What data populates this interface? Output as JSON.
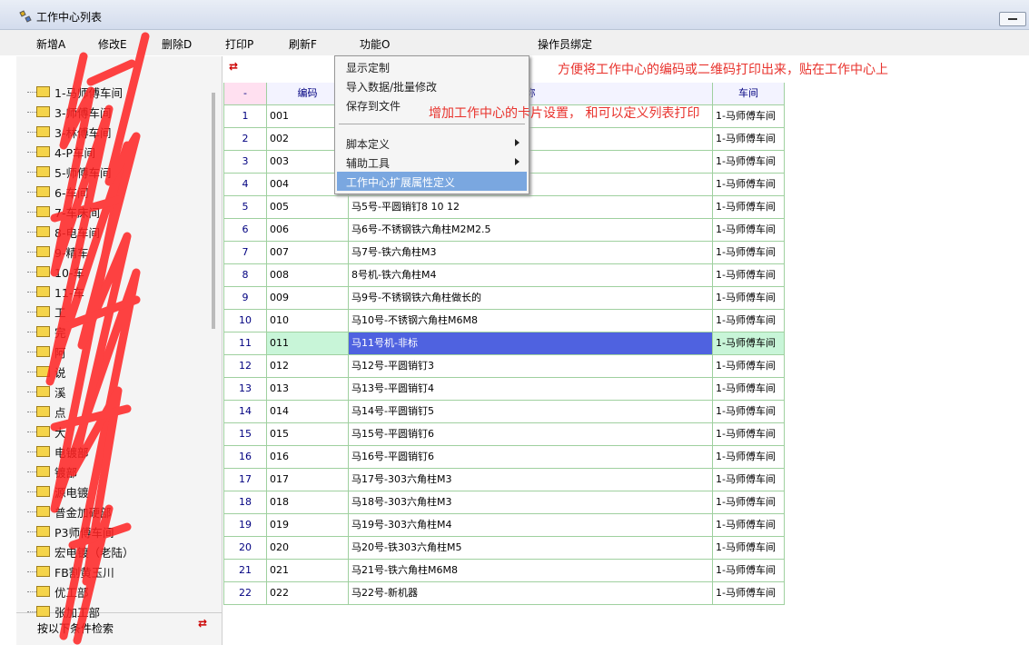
{
  "window": {
    "title": "工作中心列表"
  },
  "toolbar": [
    "新增A",
    "修改E",
    "删除D",
    "打印P",
    "刷新F",
    "功能O",
    "操作员绑定"
  ],
  "tree": [
    "1-马师傅车间",
    "3-师傅车间",
    "3-林傅车间",
    "4-P车间",
    "5-师傅车间",
    "6-车间",
    "7-车床间",
    "8-电车间",
    "9-精车",
    "10-车",
    "11-车",
    "工",
    "完",
    "阿",
    "说",
    "溪",
    "点",
    "大",
    "电镀部",
    "镀部",
    "源电镀",
    "普金加硬部",
    "P3师傅车间",
    "宏电镀（老陆）",
    "FB割黄玉川",
    "优工部",
    "张加工部"
  ],
  "search_label": "按以下条件检索",
  "table": {
    "headers": [
      "-",
      "编码",
      "称",
      "车间"
    ],
    "rows": [
      [
        "1",
        "001",
        null,
        "1-马师傅车间"
      ],
      [
        "2",
        "002",
        null,
        "1-马师傅车间"
      ],
      [
        "3",
        "003",
        null,
        "1-马师傅车间"
      ],
      [
        "4",
        "004",
        null,
        "1-马师傅车间"
      ],
      [
        "5",
        "005",
        "马5号-平圆销钉8 10 12",
        "1-马师傅车间"
      ],
      [
        "6",
        "006",
        "马6号-不锈钢铁六角柱M2M2.5",
        "1-马师傅车间"
      ],
      [
        "7",
        "007",
        "马7号-铁六角柱M3",
        "1-马师傅车间"
      ],
      [
        "8",
        "008",
        "8号机-铁六角柱M4",
        "1-马师傅车间"
      ],
      [
        "9",
        "009",
        "马9号-不锈钢铁六角柱做长的",
        "1-马师傅车间"
      ],
      [
        "10",
        "010",
        "马10号-不锈钢六角柱M6M8",
        "1-马师傅车间"
      ],
      [
        "11",
        "011",
        "马11号机-非标",
        "1-马师傅车间"
      ],
      [
        "12",
        "012",
        "马12号-平圆销钉3",
        "1-马师傅车间"
      ],
      [
        "13",
        "013",
        "马13号-平圆销钉4",
        "1-马师傅车间"
      ],
      [
        "14",
        "014",
        "马14号-平圆销钉5",
        "1-马师傅车间"
      ],
      [
        "15",
        "015",
        "马15号-平圆销钉6",
        "1-马师傅车间"
      ],
      [
        "16",
        "016",
        "马16号-平圆销钉6",
        "1-马师傅车间"
      ],
      [
        "17",
        "017",
        "马17号-303六角柱M3",
        "1-马师傅车间"
      ],
      [
        "18",
        "018",
        "马18号-303六角柱M3",
        "1-马师傅车间"
      ],
      [
        "19",
        "019",
        "马19号-303六角柱M4",
        "1-马师傅车间"
      ],
      [
        "20",
        "020",
        "马20号-铁303六角柱M5",
        "1-马师傅车间"
      ],
      [
        "21",
        "021",
        "马21号-铁六角柱M6M8",
        "1-马师傅车间"
      ],
      [
        "22",
        "022",
        "马22号-新机器",
        "1-马师傅车间"
      ]
    ]
  },
  "menu": {
    "items": [
      "显示定制",
      "导入数据/批量修改",
      "保存到文件",
      "脚本定义",
      "辅助工具",
      "工作中心扩展属性定义"
    ]
  },
  "annotations": [
    "方便将工作中心的编码或二维码打印出来，贴在工作中心上",
    "增加工作中心的卡片设置， 和可以定义列表打印"
  ]
}
